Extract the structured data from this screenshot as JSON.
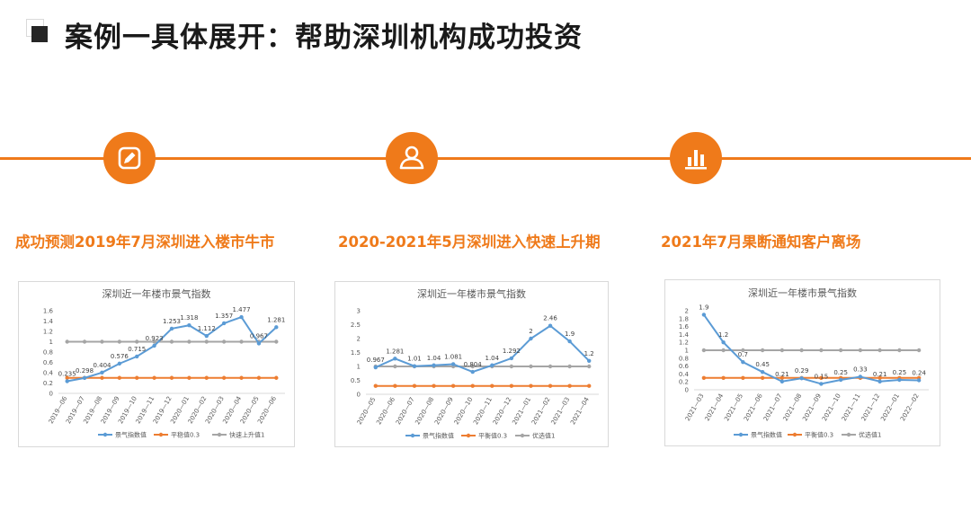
{
  "header": {
    "title": "案例一具体展开：帮助深圳机构成功投资"
  },
  "milestones": [
    {
      "icon": "pencil-icon",
      "label": "成功预测2019年7月深圳进入楼市牛市"
    },
    {
      "icon": "user-icon",
      "label": "2020-2021年5月深圳进入快速上升期"
    },
    {
      "icon": "bar-chart-icon",
      "label": "2021年7月果断通知客户离场"
    }
  ],
  "colors": {
    "accent": "#ef7a1a",
    "index": "#5b9bd5",
    "balance": "#ed7d31",
    "reference": "#a5a5a5"
  },
  "chart_data": [
    {
      "type": "line",
      "title": "深圳近一年楼市景气指数",
      "categories": [
        "2019—06",
        "2019—07",
        "2019—08",
        "2019—09",
        "2019—10",
        "2019—11",
        "2019—12",
        "2020—01",
        "2020—02",
        "2020—03",
        "2020—04",
        "2020—05",
        "2020—06"
      ],
      "ylim": [
        0,
        1.6
      ],
      "yticks": [
        "0",
        "0.2",
        "0.4",
        "0.6",
        "0.8",
        "1",
        "1.2",
        "1.4",
        "1.6"
      ],
      "legend": "bottom",
      "grid": false,
      "series": [
        {
          "name": "景气指数值",
          "values": [
            0.235,
            0.298,
            0.404,
            0.576,
            0.715,
            0.923,
            1.253,
            1.318,
            1.112,
            1.357,
            1.477,
            0.967,
            1.281
          ],
          "labels": [
            "0.235",
            "0.298",
            "0.404",
            "0.576",
            "0.715",
            "0.923",
            "1.253",
            "1.318",
            "1.112",
            "1.357",
            "1.477",
            "0.967",
            "1.281"
          ]
        },
        {
          "name": "平稳值0.3",
          "values": [
            0.3,
            0.3,
            0.3,
            0.3,
            0.3,
            0.3,
            0.3,
            0.3,
            0.3,
            0.3,
            0.3,
            0.3,
            0.3
          ]
        },
        {
          "name": "快速上升值1",
          "values": [
            1,
            1,
            1,
            1,
            1,
            1,
            1,
            1,
            1,
            1,
            1,
            1,
            1
          ]
        }
      ]
    },
    {
      "type": "line",
      "title": "深圳近一年楼市景气指数",
      "categories": [
        "2020—05",
        "2020—06",
        "2020—07",
        "2020—08",
        "2020—09",
        "2020—10",
        "2020—11",
        "2020—12",
        "2021—01",
        "2021—02",
        "2021—03",
        "2021—04"
      ],
      "ylim": [
        0,
        3
      ],
      "yticks": [
        "0",
        "0.5",
        "1",
        "1.5",
        "2",
        "2.5",
        "3"
      ],
      "legend": "bottom",
      "grid": false,
      "series": [
        {
          "name": "景气指数值",
          "values": [
            0.967,
            1.281,
            1.01,
            1.04,
            1.081,
            0.804,
            1.04,
            1.292,
            2,
            2.46,
            1.9,
            1.2
          ],
          "labels": [
            "0.967",
            "1.281",
            "1.01",
            "1.04",
            "1.081",
            "0.804",
            "1.04",
            "1.292",
            "2",
            "2.46",
            "1.9",
            "1.2"
          ]
        },
        {
          "name": "平衡值0.3",
          "values": [
            0.3,
            0.3,
            0.3,
            0.3,
            0.3,
            0.3,
            0.3,
            0.3,
            0.3,
            0.3,
            0.3,
            0.3
          ]
        },
        {
          "name": "优选值1",
          "values": [
            1,
            1,
            1,
            1,
            1,
            1,
            1,
            1,
            1,
            1,
            1,
            1
          ]
        }
      ]
    },
    {
      "type": "line",
      "title": "深圳近一年楼市景气指数",
      "categories": [
        "2021—03",
        "2021—04",
        "2021—05",
        "2021—06",
        "2021—07",
        "2021—08",
        "2021—09",
        "2021—10",
        "2021—11",
        "2021—12",
        "2022—01",
        "2022—02"
      ],
      "ylim": [
        0,
        2
      ],
      "yticks": [
        "0",
        "0.2",
        "0.4",
        "0.6",
        "0.8",
        "1",
        "1.2",
        "1.4",
        "1.6",
        "1.8",
        "2"
      ],
      "legend": "bottom",
      "grid": false,
      "series": [
        {
          "name": "景气指数值",
          "values": [
            1.9,
            1.2,
            0.7,
            0.45,
            0.21,
            0.29,
            0.15,
            0.25,
            0.33,
            0.21,
            0.25,
            0.24
          ],
          "labels": [
            "1.9",
            "1.2",
            "0.7",
            "0.45",
            "0.21",
            "0.29",
            "0.15",
            "0.25",
            "0.33",
            "0.21",
            "0.25",
            "0.24"
          ]
        },
        {
          "name": "平衡值0.3",
          "values": [
            0.3,
            0.3,
            0.3,
            0.3,
            0.3,
            0.3,
            0.3,
            0.3,
            0.3,
            0.3,
            0.3,
            0.3
          ]
        },
        {
          "name": "优选值1",
          "values": [
            1,
            1,
            1,
            1,
            1,
            1,
            1,
            1,
            1,
            1,
            1,
            1
          ]
        }
      ]
    }
  ]
}
